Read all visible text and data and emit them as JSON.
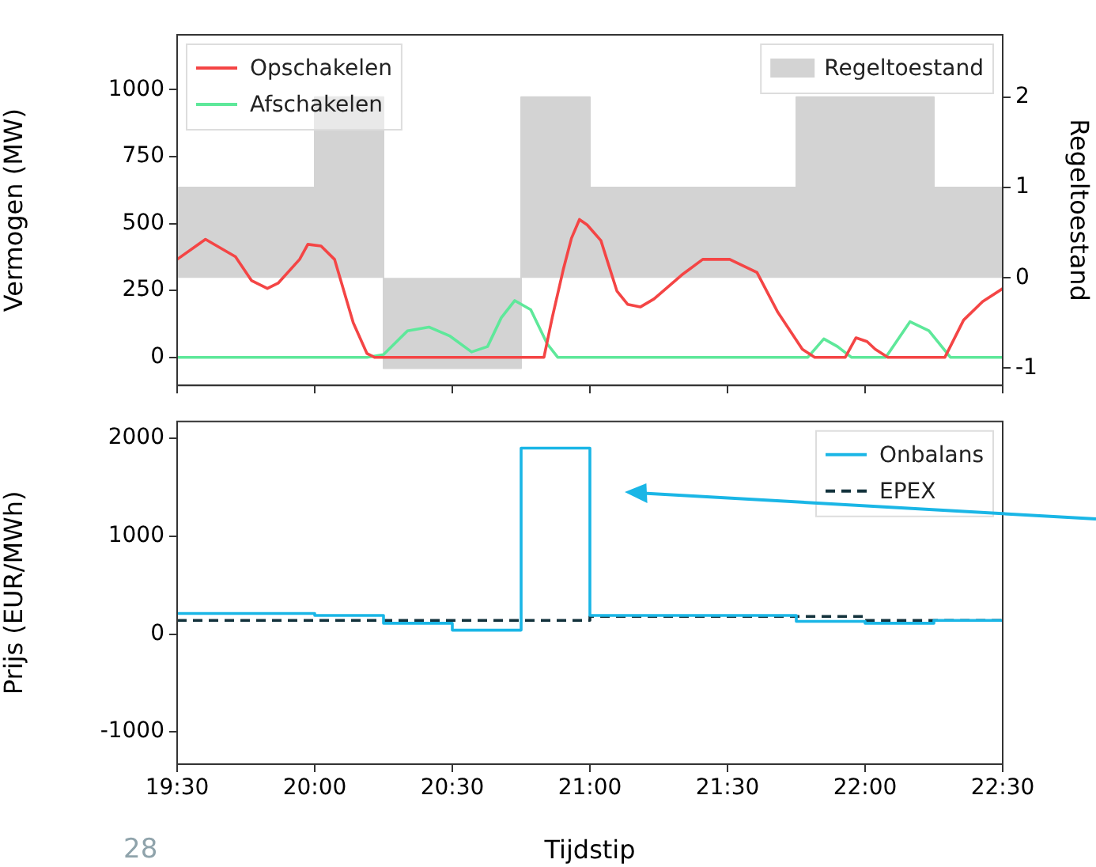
{
  "chart_data": [
    {
      "type": "step",
      "ylabel": "Vermogen (MW)",
      "y2label": "Regeltoestand",
      "xlim": [
        19.5,
        22.5
      ],
      "xticks": [
        {
          "value": 19.5,
          "label": null
        },
        {
          "value": 20,
          "label": null
        },
        {
          "value": 20.5,
          "label": null
        },
        {
          "value": 21,
          "label": null
        },
        {
          "value": 21.5,
          "label": null
        },
        {
          "value": 22,
          "label": null
        },
        {
          "value": 22.5,
          "label": null
        }
      ],
      "ylim": [
        -105,
        1205
      ],
      "yticks": [
        0,
        250,
        500,
        750,
        1000
      ],
      "y2lim": [
        -1.19,
        2.69
      ],
      "y2ticks": [
        -1,
        0,
        1,
        2
      ],
      "tick_labels": "y",
      "grid": false,
      "legend": "top left",
      "marker": "none",
      "series": [
        {
          "name": "Regeltoestand",
          "type": "area",
          "axis": "y2",
          "color": "#d3d3d3",
          "x": [
            19.5,
            19.75,
            20,
            20.25,
            20.5,
            20.75,
            21,
            21.25,
            21.5,
            21.75,
            22,
            22.25,
            22.5
          ],
          "values": [
            1,
            1,
            2,
            -1,
            -1,
            2,
            1,
            1,
            1,
            2,
            2,
            1,
            1
          ]
        },
        {
          "name": "Opschakelen",
          "type": "line",
          "color": "#f44545",
          "x": [
            19.5,
            19.603,
            19.712,
            19.77,
            19.828,
            19.867,
            19.945,
            19.975,
            20.023,
            20.072,
            20.14,
            20.19,
            20.217,
            20.833,
            20.863,
            20.903,
            20.933,
            20.962,
            20.99,
            21.04,
            21.098,
            21.137,
            21.183,
            21.233,
            21.333,
            21.41,
            21.508,
            21.607,
            21.683,
            21.772,
            21.817,
            21.928,
            21.967,
            22.007,
            22.037,
            22.083,
            22.29,
            22.358,
            22.427,
            22.5
          ],
          "values": [
            366,
            441,
            376,
            287,
            257,
            277,
            366,
            422,
            416,
            366,
            129,
            14,
            0,
            0,
            148,
            327,
            445,
            515,
            495,
            436,
            248,
            198,
            188,
            218,
            307,
            366,
            366,
            317,
            168,
            30,
            0,
            0,
            73,
            59,
            30,
            0,
            0,
            139,
            208,
            257
          ]
        },
        {
          "name": "Afschakelen",
          "type": "line",
          "color": "#5ee89a",
          "x": [
            19.5,
            20.19,
            20.25,
            20.337,
            20.415,
            20.492,
            20.57,
            20.628,
            20.678,
            20.727,
            20.785,
            20.845,
            20.883,
            21.792,
            21.85,
            21.9,
            21.95,
            22.075,
            22.163,
            22.232,
            22.31,
            22.5
          ],
          "values": [
            0,
            0,
            10,
            99,
            113,
            79,
            20,
            40,
            148,
            212,
            178,
            50,
            0,
            0,
            69,
            40,
            0,
            0,
            133,
            99,
            0,
            0
          ]
        }
      ]
    },
    {
      "type": "step",
      "ylabel": "Prijs (EUR/MWh)",
      "xlabel": "Tijdstip",
      "xlim": [
        19.5,
        22.5
      ],
      "xticks": [
        {
          "value": 19.5,
          "label": "19:30"
        },
        {
          "value": 20,
          "label": "20:00"
        },
        {
          "value": 20.5,
          "label": "20:30"
        },
        {
          "value": 21,
          "label": "21:00"
        },
        {
          "value": 21.5,
          "label": "21:30"
        },
        {
          "value": 22,
          "label": "22:00"
        },
        {
          "value": 22.5,
          "label": "22:30"
        }
      ],
      "ylim": [
        -1330,
        2173
      ],
      "yticks": [
        -1000,
        0,
        1000,
        2000
      ],
      "grid": false,
      "legend": "top right",
      "marker": "none",
      "annotations": [
        "28"
      ],
      "series": [
        {
          "name": "Onbalans",
          "color": "#1ab6e6",
          "line_style": "solid",
          "x": [
            19.5,
            19.75,
            20,
            20.25,
            20.5,
            20.75,
            21,
            21.25,
            21.5,
            21.75,
            22,
            22.25,
            22.5
          ],
          "values": [
            210,
            210,
            190,
            110,
            40,
            1900,
            190,
            190,
            190,
            130,
            110,
            140,
            140
          ]
        },
        {
          "name": "EPEX",
          "color": "#13323c",
          "line_style": "dashed",
          "x": [
            19.5,
            20,
            20.5,
            21,
            21.5,
            22,
            22.5
          ],
          "values": [
            140,
            140,
            140,
            180,
            180,
            140,
            140
          ]
        }
      ]
    }
  ]
}
